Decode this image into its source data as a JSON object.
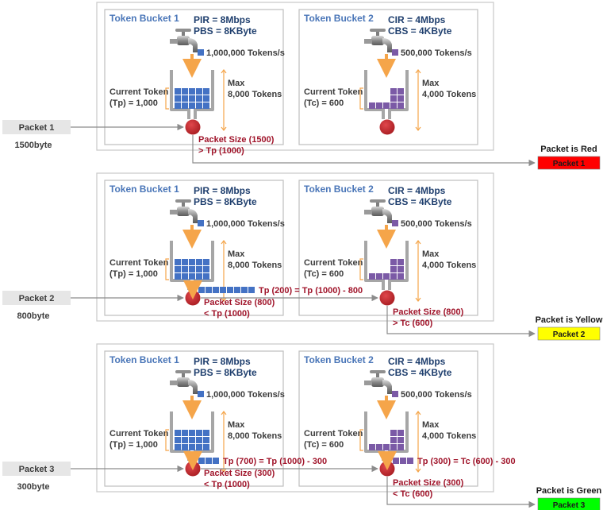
{
  "rows": [
    {
      "packet": {
        "label": "Packet 1",
        "size": "1500byte"
      },
      "tb1": {
        "title": "Token Bucket 1",
        "rate": "PIR = 8Mbps",
        "burst": "PBS = 8KByte",
        "fill": "1,000,000 Tokens/s",
        "current_l1": "Current Token",
        "current_l2": "(Tp) = 1,000",
        "max_l1": "Max",
        "max_l2": "8,000 Tokens",
        "result": "",
        "cmp_l1": "Packet Size (1500)",
        "cmp_l2": "> Tp (1000)"
      },
      "tb2": {
        "title": "Token Bucket 2",
        "rate": "CIR = 4Mbps",
        "burst": "CBS = 4KByte",
        "fill": "500,000 Tokens/s",
        "current_l1": "Current Token",
        "current_l2": "(Tc) = 600",
        "max_l1": "Max",
        "max_l2": "4,000 Tokens",
        "result": "",
        "cmp_l1": "",
        "cmp_l2": ""
      },
      "outcome": {
        "title": "Packet is Red",
        "label": "Packet 1",
        "color": "#ff0000"
      }
    },
    {
      "packet": {
        "label": "Packet 2",
        "size": "800byte"
      },
      "tb1": {
        "title": "Token Bucket 1",
        "rate": "PIR = 8Mbps",
        "burst": "PBS = 8KByte",
        "fill": "1,000,000 Tokens/s",
        "current_l1": "Current Token",
        "current_l2": "(Tp) = 1,000",
        "max_l1": "Max",
        "max_l2": "8,000 Tokens",
        "result": "Tp (200) = Tp (1000) - 800",
        "cmp_l1": "Packet Size (800)",
        "cmp_l2": "< Tp (1000)"
      },
      "tb2": {
        "title": "Token Bucket 2",
        "rate": "CIR = 4Mbps",
        "burst": "CBS = 4KByte",
        "fill": "500,000 Tokens/s",
        "current_l1": "Current Token",
        "current_l2": "(Tc) = 600",
        "max_l1": "Max",
        "max_l2": "4,000 Tokens",
        "result": "",
        "cmp_l1": "Packet Size (800)",
        "cmp_l2": "> Tc (600)"
      },
      "outcome": {
        "title": "Packet is Yellow",
        "label": "Packet 2",
        "color": "#ffff00"
      }
    },
    {
      "packet": {
        "label": "Packet 3",
        "size": "300byte"
      },
      "tb1": {
        "title": "Token Bucket 1",
        "rate": "PIR = 8Mbps",
        "burst": "PBS = 8KByte",
        "fill": "1,000,000 Tokens/s",
        "current_l1": "Current Token",
        "current_l2": "(Tp) = 1,000",
        "max_l1": "Max",
        "max_l2": "8,000 Tokens",
        "result": "Tp (700) = Tp (1000) - 300",
        "cmp_l1": "Packet Size (300)",
        "cmp_l2": "< Tp (1000)"
      },
      "tb2": {
        "title": "Token Bucket 2",
        "rate": "CIR = 4Mbps",
        "burst": "CBS = 4KByte",
        "fill": "500,000 Tokens/s",
        "current_l1": "Current Token",
        "current_l2": "(Tc) = 600",
        "max_l1": "Max",
        "max_l2": "4,000 Tokens",
        "result": "Tp (300) = Tc (600) - 300",
        "cmp_l1": "Packet Size (300)",
        "cmp_l2": "< Tc (600)"
      },
      "outcome": {
        "title": "Packet is Green",
        "label": "Packet 3",
        "color": "#00ff00"
      }
    }
  ],
  "colors": {
    "token_blue": "#4472c4",
    "token_purple": "#7b5aa6",
    "title_blue": "#4a76b8",
    "param_navy": "#1f3f6e",
    "dark_red": "#a0142a",
    "ball_red": "#c0282d",
    "orange": "#f5a54a",
    "packet_gray": "#e6e6e6"
  }
}
